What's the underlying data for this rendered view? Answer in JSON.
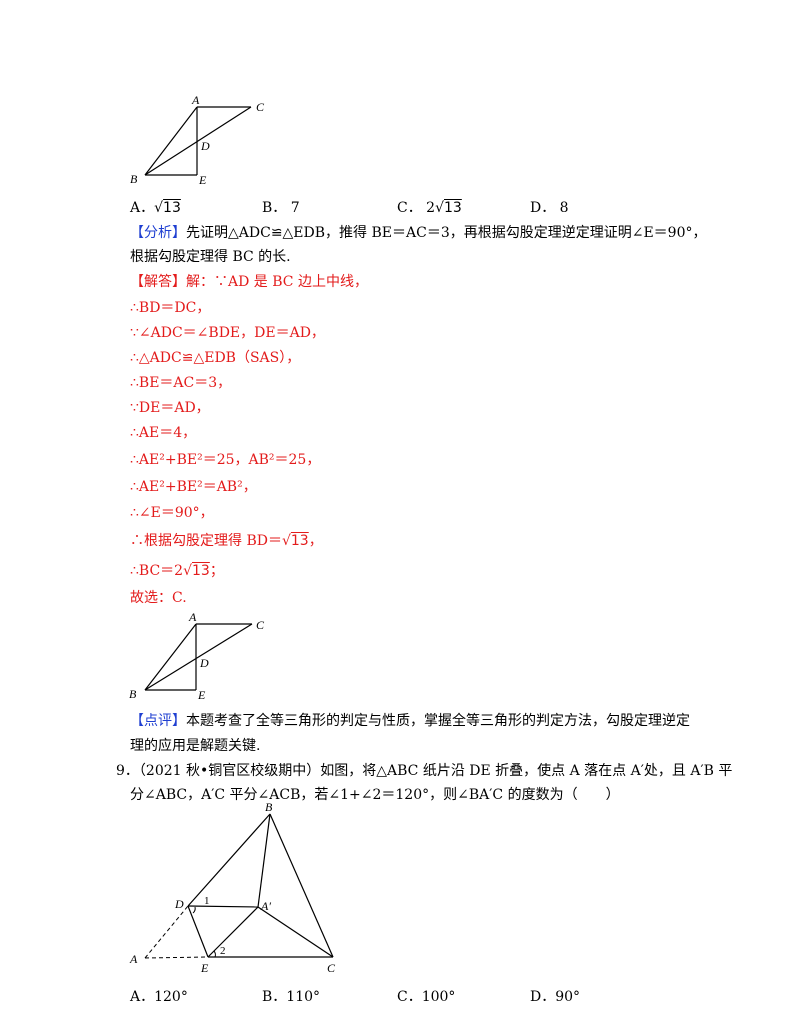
{
  "figure1": {
    "A": "A",
    "B": "B",
    "C": "C",
    "D": "D",
    "E": "E"
  },
  "figure2": {
    "A": "A",
    "B": "B",
    "C": "C",
    "D": "D",
    "E": "E"
  },
  "figure3": {
    "A": "A",
    "B": "B",
    "C": "C",
    "D": "D",
    "E": "E",
    "A1": "A′",
    "angle1": "1",
    "angle2": "2"
  },
  "q8_choices": {
    "a_prefix": "A．",
    "a_root": "√",
    "a_rad": "13",
    "b": "B．  7",
    "c_prefix": "C．  2",
    "c_root": "√",
    "c_rad": "13",
    "d": "D．  8"
  },
  "analysis": {
    "tag": "【分析】",
    "line1": "先证明△ADC≌△EDB，推得 BE＝AC＝3，再根据勾股定理逆定理证明∠E＝90°，",
    "line2": "根据勾股定理得 BC 的长."
  },
  "solution": {
    "tag": "【解答】",
    "line1": "解：∵AD 是 BC 边上中线，",
    "line2": "∴BD＝DC，",
    "line3": "∵∠ADC＝∠BDE，DE＝AD，",
    "line4": "∴△ADC≌△EDB（SAS），",
    "line5": "∴BE＝AC＝3，",
    "line6": "∵DE＝AD，",
    "line7": "∴AE＝4，",
    "line8": "∴AE²+BE²＝25，AB²＝25，",
    "line9": "∴AE²+BE²＝AB²，",
    "line10": "∴∠E＝90°，",
    "line11_pre": "∴根据勾股定理得 BD＝",
    "line11_root": "√",
    "line11_rad": "13",
    "line11_post": "，",
    "line12_pre": "∴BC＝2",
    "line12_root": "√",
    "line12_rad": "13",
    "line12_post": "；",
    "line13": "故选：C."
  },
  "comment": {
    "tag": "【点评】",
    "line1": "本题考查了全等三角形的判定与性质，掌握全等三角形的判定方法，勾股定理逆定",
    "line2": "理的应用是解题关键."
  },
  "q9": {
    "line1": "9．（2021 秋•铜官区校级期中）如图，将△ABC 纸片沿 DE 折叠，使点 A 落在点 A′处，且 A′B 平",
    "line2": "分∠ABC，A′C 平分∠ACB，若∠1+∠2＝120°，则∠BA′C 的度数为（　　）"
  },
  "q9_choices": {
    "a": "A．120°",
    "b": "B．110°",
    "c": "C．100°",
    "d": "D．90°"
  }
}
